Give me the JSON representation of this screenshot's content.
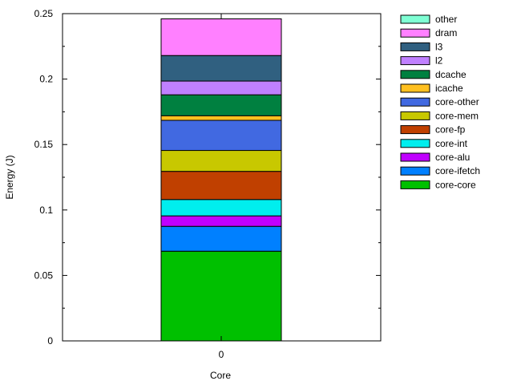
{
  "chart_data": {
    "type": "bar",
    "stacked": true,
    "categories": [
      "0"
    ],
    "xlabel": "Core",
    "ylabel": "Energy (J)",
    "ylim": [
      0,
      0.25
    ],
    "yticks": [
      "0",
      "0.05",
      "0.1",
      "0.15",
      "0.2",
      "0.25"
    ],
    "grid": false,
    "legend_position": "right",
    "series": [
      {
        "name": "core-core",
        "color": "#00c000",
        "values": [
          0.0685
        ]
      },
      {
        "name": "core-ifetch",
        "color": "#0080ff",
        "values": [
          0.019
        ]
      },
      {
        "name": "core-alu",
        "color": "#c000ff",
        "values": [
          0.008
        ]
      },
      {
        "name": "core-int",
        "color": "#00eeee",
        "values": [
          0.0125
        ]
      },
      {
        "name": "core-fp",
        "color": "#c04000",
        "values": [
          0.0215
        ]
      },
      {
        "name": "core-mem",
        "color": "#c8c800",
        "values": [
          0.016
        ]
      },
      {
        "name": "core-other",
        "color": "#4169e1",
        "values": [
          0.023
        ]
      },
      {
        "name": "icache",
        "color": "#ffc020",
        "values": [
          0.0035
        ]
      },
      {
        "name": "dcache",
        "color": "#008040",
        "values": [
          0.016
        ]
      },
      {
        "name": "l2",
        "color": "#c080ff",
        "values": [
          0.0105
        ]
      },
      {
        "name": "l3",
        "color": "#306080",
        "values": [
          0.0195
        ]
      },
      {
        "name": "dram",
        "color": "#ff80ff",
        "values": [
          0.028
        ]
      },
      {
        "name": "other",
        "color": "#7fffd4",
        "values": [
          0.0
        ]
      }
    ]
  }
}
